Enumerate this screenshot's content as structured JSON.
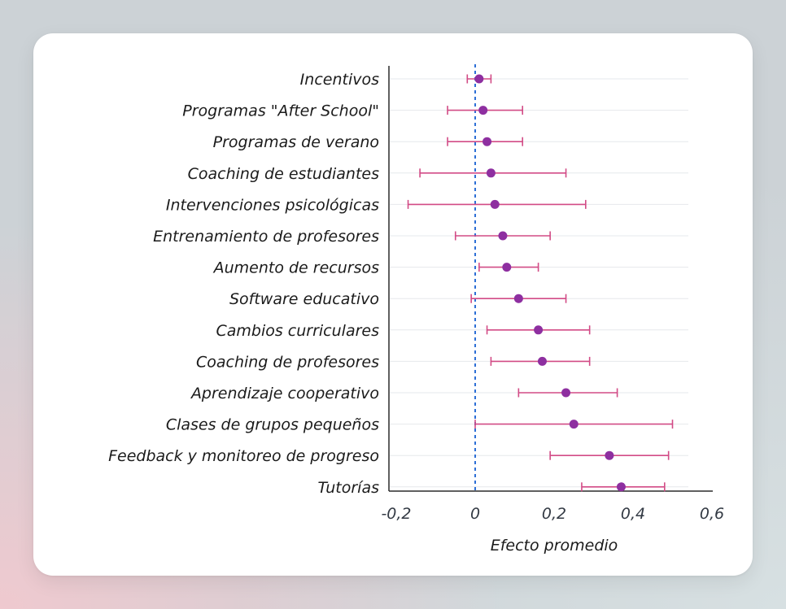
{
  "chart_data": {
    "type": "forest",
    "xlabel": "Efecto promedio",
    "xlim": [
      -0.25,
      0.65
    ],
    "xticks": [
      -0.2,
      0,
      0.2,
      0.4,
      0.6
    ],
    "xtick_labels": [
      "-0,2",
      "0",
      "0,2",
      "0,4",
      "0,6"
    ],
    "reference_line": 0,
    "grid": "horizontal",
    "categories": [
      "Incentivos",
      "Programas \"After School\"",
      "Programas de verano",
      "Coaching de estudiantes",
      "Intervenciones psicológicas",
      "Entrenamiento de profesores",
      "Aumento de recursos",
      "Software educativo",
      "Cambios curriculares",
      "Coaching de profesores",
      "Aprendizaje cooperativo",
      "Clases de grupos pequeños",
      "Feedback y monitoreo de progreso",
      "Tutorías"
    ],
    "estimates": [
      0.01,
      0.02,
      0.03,
      0.04,
      0.05,
      0.07,
      0.08,
      0.11,
      0.16,
      0.17,
      0.23,
      0.25,
      0.34,
      0.37
    ],
    "ci_low": [
      -0.02,
      -0.07,
      -0.07,
      -0.14,
      -0.17,
      -0.05,
      0.01,
      -0.01,
      0.03,
      0.04,
      0.11,
      0.0,
      0.19,
      0.27
    ],
    "ci_high": [
      0.04,
      0.12,
      0.12,
      0.23,
      0.28,
      0.19,
      0.16,
      0.23,
      0.29,
      0.29,
      0.36,
      0.5,
      0.49,
      0.48
    ],
    "colors": {
      "point": "#8e2fa0",
      "ci": "#d24b86",
      "reference": "#2d6fd6",
      "axis": "#2b2b2b",
      "grid": "#e6e8ec"
    }
  }
}
